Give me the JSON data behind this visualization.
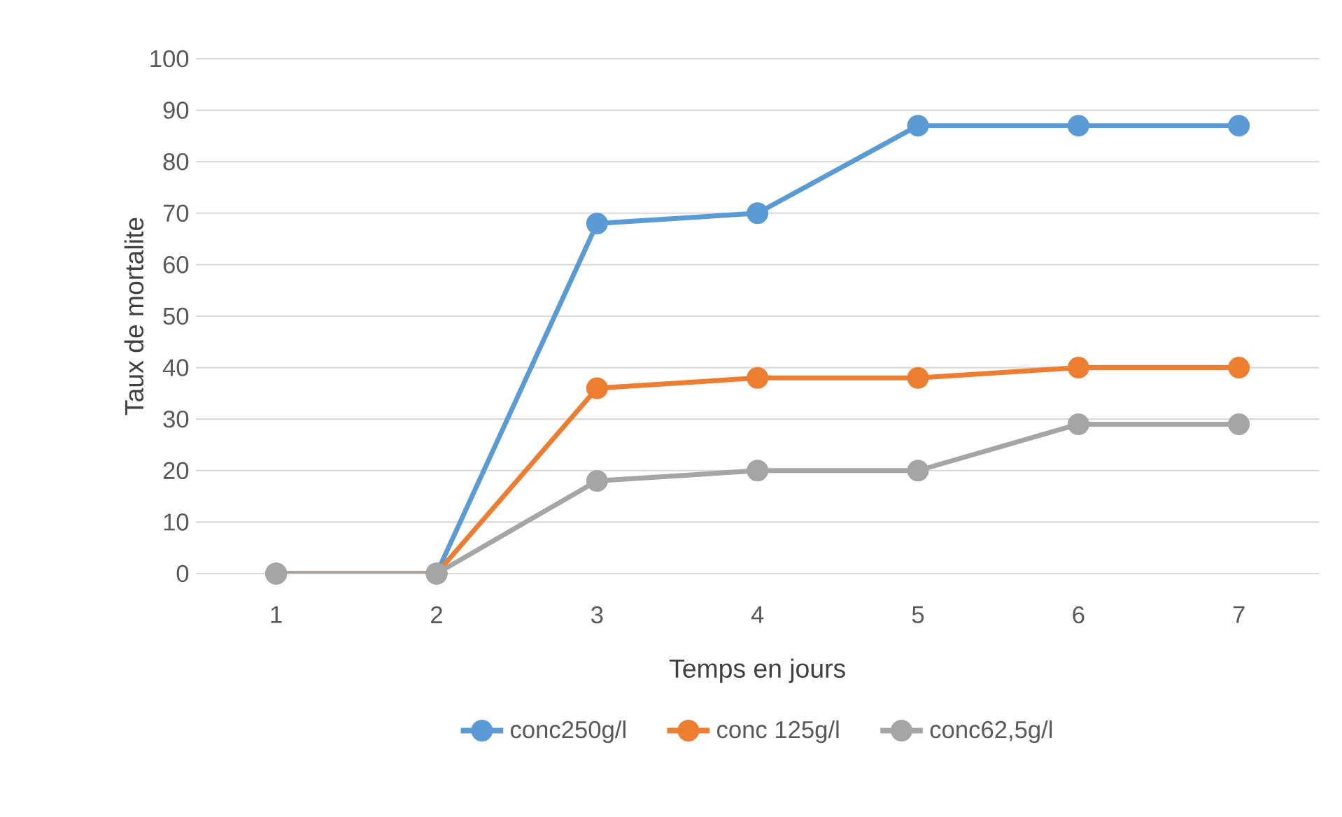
{
  "chart_data": {
    "type": "line",
    "xlabel": "Temps en jours",
    "ylabel": "Taux de mortalite",
    "categories": [
      "1",
      "2",
      "3",
      "4",
      "5",
      "6",
      "7"
    ],
    "series": [
      {
        "name": "conc250g/l",
        "color": "#5b9bd5",
        "values": [
          0,
          0,
          68,
          70,
          87,
          87,
          87
        ]
      },
      {
        "name": "conc 125g/l",
        "color": "#ed7d31",
        "values": [
          0,
          0,
          36,
          38,
          38,
          40,
          40
        ]
      },
      {
        "name": "conc62,5g/l",
        "color": "#a5a5a5",
        "values": [
          0,
          0,
          18,
          20,
          20,
          29,
          29
        ]
      }
    ],
    "ylim": [
      0,
      100
    ],
    "yticks": [
      0,
      10,
      20,
      30,
      40,
      50,
      60,
      70,
      80,
      90,
      100
    ],
    "grid": "y",
    "legend": "bottom",
    "marker": "circle",
    "line_style": "solid"
  }
}
